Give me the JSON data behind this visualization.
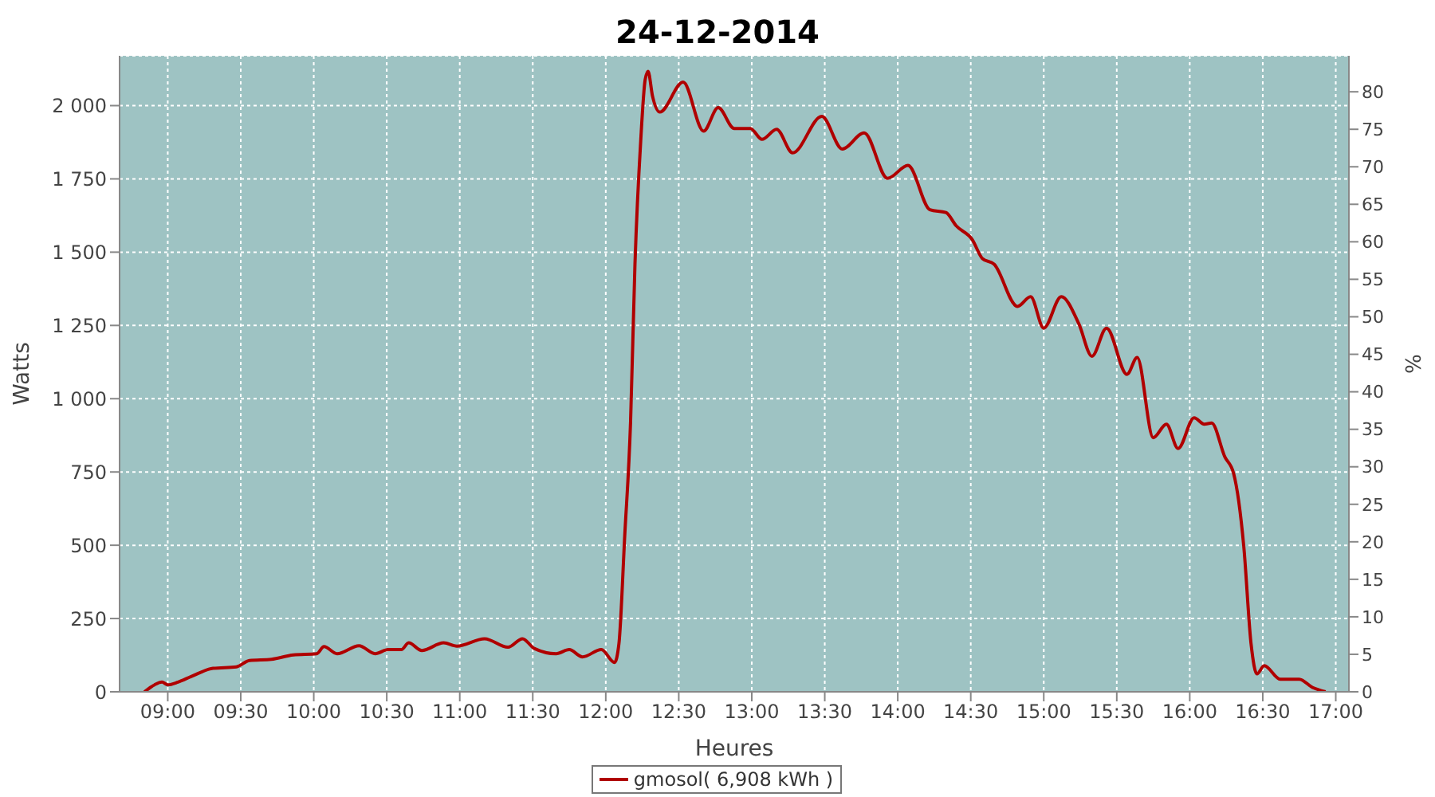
{
  "chart_data": {
    "type": "line",
    "title": "24-12-2014",
    "xlabel": "Heures",
    "ylabel": "Watts",
    "y2label": "%",
    "xlim": [
      8.67,
      17.09
    ],
    "xticks": [
      {
        "value": 9,
        "label": "09:00"
      },
      {
        "value": 9.5,
        "label": "09:30"
      },
      {
        "value": 10,
        "label": "10:00"
      },
      {
        "value": 10.5,
        "label": "10:30"
      },
      {
        "value": 11,
        "label": "11:00"
      },
      {
        "value": 11.5,
        "label": "11:30"
      },
      {
        "value": 12,
        "label": "12:00"
      },
      {
        "value": 12.5,
        "label": "12:30"
      },
      {
        "value": 13,
        "label": "13:00"
      },
      {
        "value": 13.5,
        "label": "13:30"
      },
      {
        "value": 14,
        "label": "14:00"
      },
      {
        "value": 14.5,
        "label": "14:30"
      },
      {
        "value": 15,
        "label": "15:00"
      },
      {
        "value": 15.5,
        "label": "15:30"
      },
      {
        "value": 16,
        "label": "16:00"
      },
      {
        "value": 16.5,
        "label": "16:30"
      },
      {
        "value": 17,
        "label": "17:00"
      }
    ],
    "ylim": [
      0,
      2170
    ],
    "yticks": [
      0,
      250,
      500,
      750,
      {
        "value": 1000,
        "label": "1 000"
      },
      {
        "value": 1250,
        "label": "1 250"
      },
      {
        "value": 1500,
        "label": "1 500"
      },
      {
        "value": 1750,
        "label": "1 750"
      },
      {
        "value": 2000,
        "label": "2 000"
      }
    ],
    "y2lim": [
      0,
      84.8
    ],
    "y2ticks": [
      0,
      5,
      10,
      15,
      20,
      25,
      30,
      35,
      40,
      45,
      50,
      55,
      60,
      65,
      70,
      75,
      80
    ],
    "grid": true,
    "legend": "bottom",
    "series": [
      {
        "name": "gmosol( 6,908 kWh )",
        "color": "#b00000",
        "x": [
          8.84,
          8.91,
          8.96,
          9.0,
          9.07,
          9.16,
          9.31,
          9.47,
          9.56,
          9.71,
          9.86,
          10.02,
          10.07,
          10.16,
          10.31,
          10.42,
          10.51,
          10.6,
          10.65,
          10.74,
          10.89,
          10.98,
          11.17,
          11.33,
          11.43,
          11.51,
          11.66,
          11.75,
          11.84,
          11.97,
          12.06,
          12.09,
          12.13,
          12.17,
          12.2,
          12.24,
          12.27,
          12.29,
          12.32,
          12.37,
          12.53,
          12.67,
          12.77,
          12.88,
          12.99,
          13.07,
          13.17,
          13.28,
          13.48,
          13.62,
          13.77,
          13.93,
          14.07,
          14.22,
          14.33,
          14.4,
          14.51,
          14.58,
          14.66,
          14.82,
          14.91,
          15.0,
          15.12,
          15.24,
          15.33,
          15.43,
          15.57,
          15.64,
          15.75,
          15.84,
          15.92,
          16.03,
          16.1,
          16.15,
          16.24,
          16.3,
          16.37,
          16.42,
          16.46,
          16.51,
          16.62,
          16.75,
          16.84,
          16.93
        ],
        "values": [
          0,
          24,
          33,
          24,
          33,
          52,
          80,
          85,
          107,
          111,
          126,
          130,
          154,
          130,
          157,
          130,
          144,
          144,
          167,
          141,
          167,
          156,
          181,
          152,
          181,
          148,
          130,
          144,
          119,
          144,
          100,
          163,
          533,
          922,
          1459,
          1885,
          2089,
          2117,
          2033,
          1978,
          2080,
          1913,
          1993,
          1922,
          1922,
          1885,
          1919,
          1839,
          1963,
          1852,
          1907,
          1752,
          1796,
          1645,
          1635,
          1590,
          1543,
          1478,
          1459,
          1315,
          1348,
          1241,
          1348,
          1256,
          1145,
          1241,
          1083,
          1141,
          867,
          913,
          830,
          935,
          913,
          917,
          802,
          746,
          496,
          163,
          61,
          89,
          43,
          43,
          15,
          0
        ]
      }
    ]
  }
}
